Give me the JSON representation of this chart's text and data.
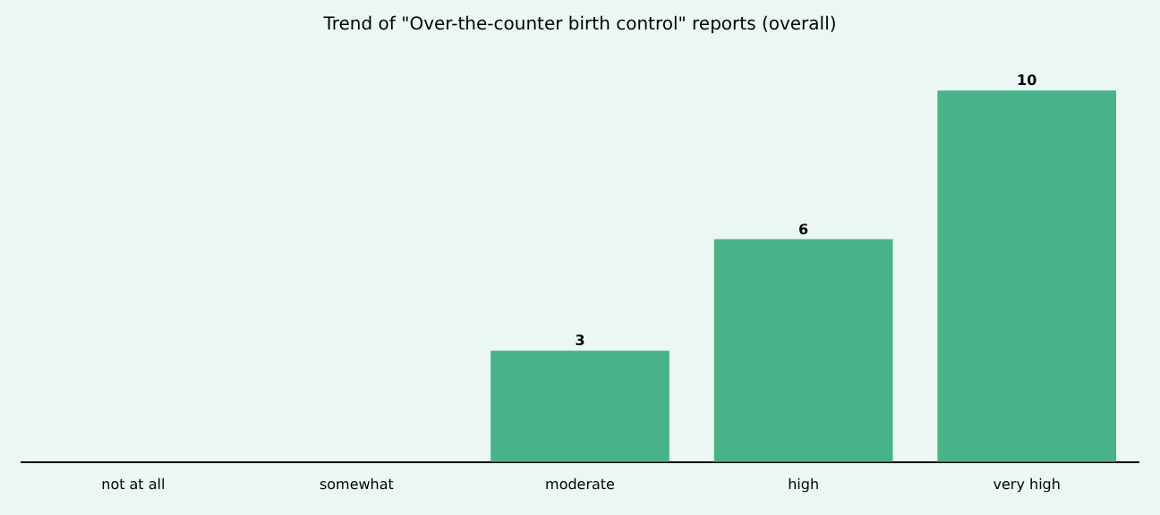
{
  "chart_data": {
    "type": "bar",
    "title": "Trend of \"Over-the-counter birth control\" reports (overall)",
    "categories": [
      "not at all",
      "somewhat",
      "moderate",
      "high",
      "very high"
    ],
    "values": [
      0,
      0,
      3,
      6,
      10
    ],
    "value_labels": [
      null,
      null,
      "3",
      "6",
      "10"
    ],
    "color": "#48b389",
    "tick_labels": "x",
    "grid": false,
    "legend": false
  }
}
